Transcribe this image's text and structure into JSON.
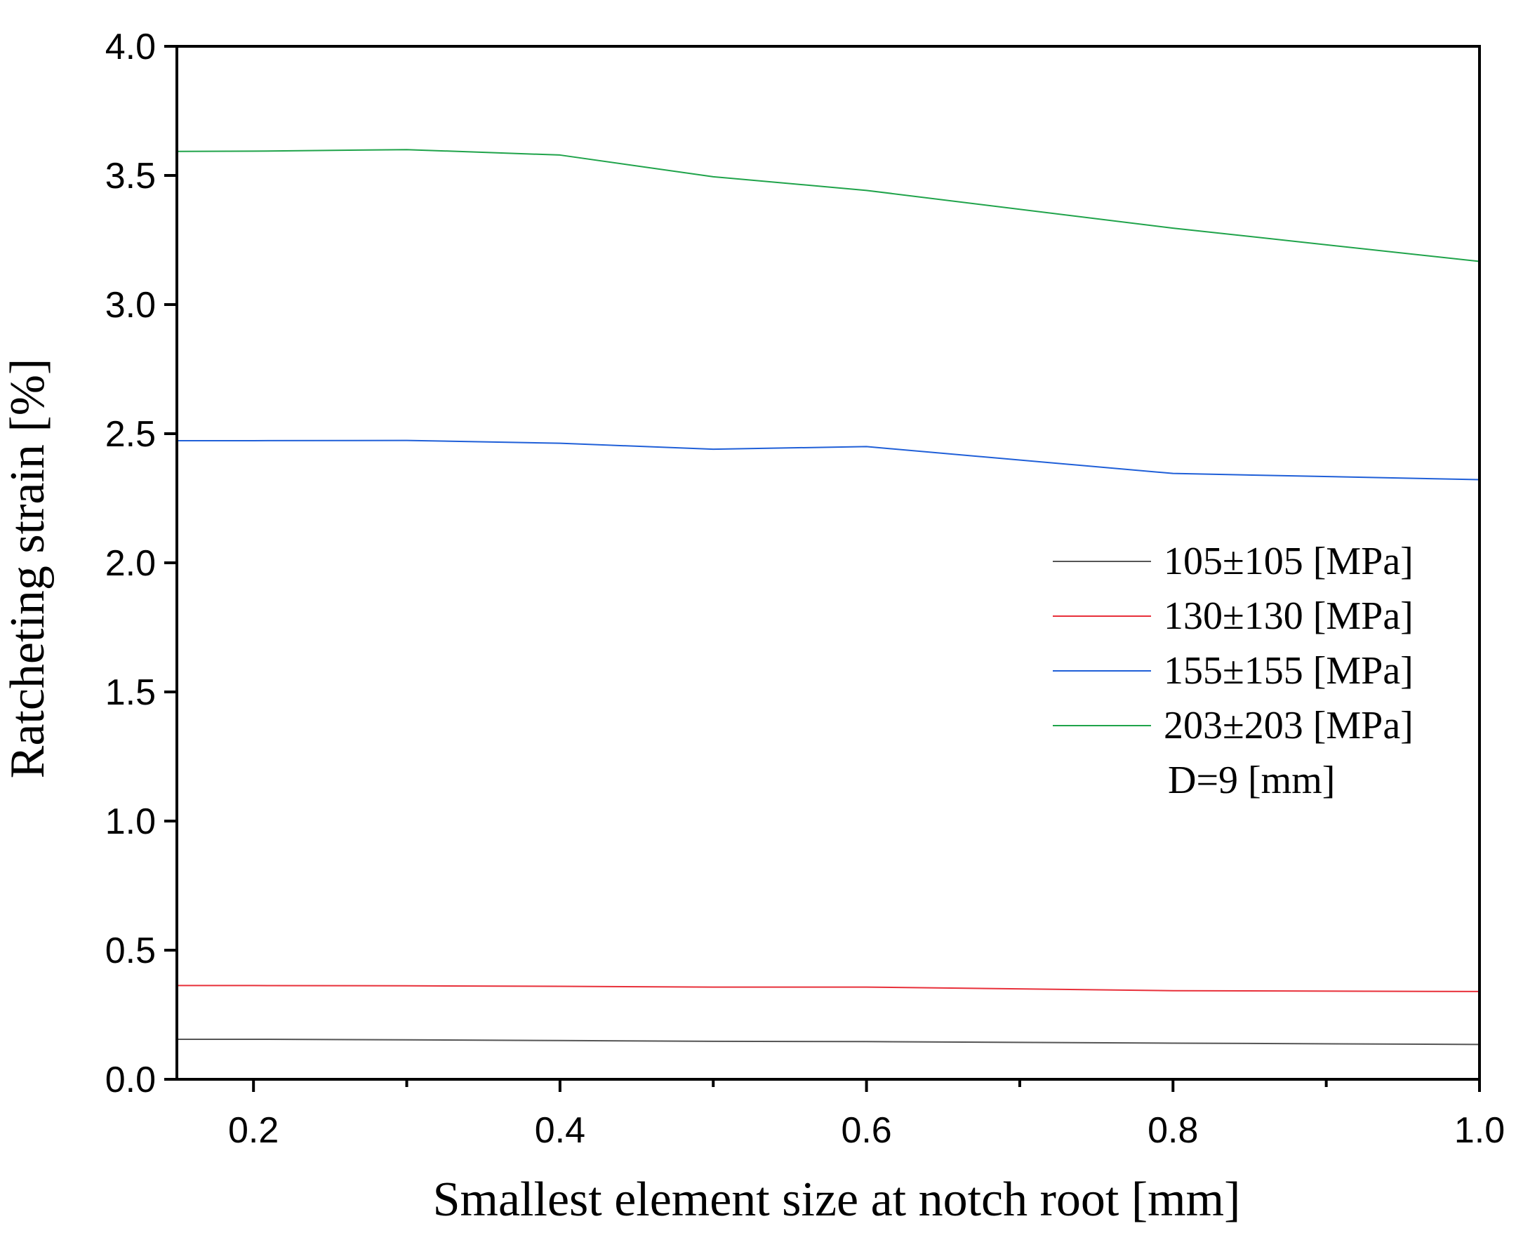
{
  "chart_data": {
    "type": "line",
    "title": "",
    "xlabel": "Smallest element size at notch root [mm]",
    "ylabel": "Ratcheting strain [%]",
    "xlim": [
      0.15,
      1.0
    ],
    "ylim": [
      0.0,
      4.0
    ],
    "x_major_ticks": [
      0.2,
      0.4,
      0.6,
      0.8,
      1.0
    ],
    "x_minor_ticks": [
      0.3,
      0.5,
      0.7,
      0.9
    ],
    "x_tick_labels": [
      "0.2",
      "0.4",
      "0.6",
      "0.8",
      "1.0"
    ],
    "y_major_ticks": [
      0.0,
      0.5,
      1.0,
      1.5,
      2.0,
      2.5,
      3.0,
      3.5,
      4.0
    ],
    "y_tick_labels": [
      "0.0",
      "0.5",
      "1.0",
      "1.5",
      "2.0",
      "2.5",
      "3.0",
      "3.5",
      "4.0"
    ],
    "grid": false,
    "legend_position": "right-middle",
    "annotation": "D=9 [mm]",
    "series": [
      {
        "name": "105±105 [MPa]",
        "color": "#555555",
        "x": [
          0.15,
          0.2,
          0.3,
          0.4,
          0.5,
          0.6,
          0.8,
          1.0
        ],
        "y": [
          0.155,
          0.155,
          0.153,
          0.15,
          0.147,
          0.146,
          0.14,
          0.135
        ]
      },
      {
        "name": "130±130 [MPa]",
        "color": "#e8303a",
        "x": [
          0.15,
          0.2,
          0.3,
          0.4,
          0.5,
          0.6,
          0.8,
          1.0
        ],
        "y": [
          0.363,
          0.363,
          0.362,
          0.36,
          0.357,
          0.357,
          0.343,
          0.34
        ]
      },
      {
        "name": "155±155 [MPa]",
        "color": "#1f5fd8",
        "x": [
          0.15,
          0.2,
          0.3,
          0.4,
          0.5,
          0.6,
          0.8,
          1.0
        ],
        "y": [
          2.473,
          2.473,
          2.474,
          2.463,
          2.44,
          2.45,
          2.346,
          2.322
        ]
      },
      {
        "name": "203±203 [MPa]",
        "color": "#1fa34a",
        "x": [
          0.15,
          0.2,
          0.3,
          0.4,
          0.5,
          0.6,
          0.8,
          1.0
        ],
        "y": [
          3.593,
          3.594,
          3.6,
          3.579,
          3.495,
          3.442,
          3.296,
          3.167
        ]
      }
    ]
  }
}
